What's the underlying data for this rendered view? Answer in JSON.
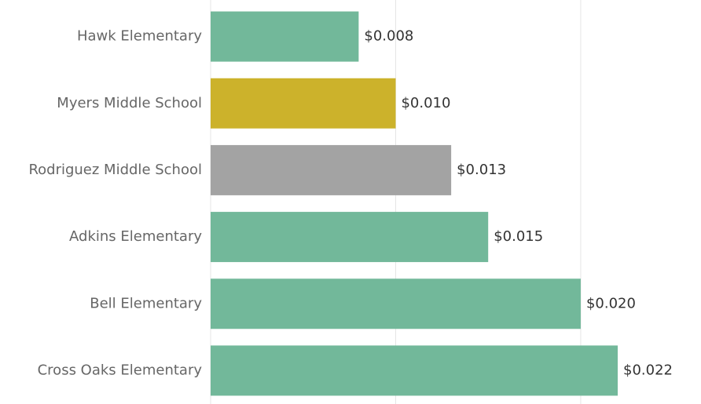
{
  "chart_data": {
    "type": "bar",
    "orientation": "horizontal",
    "categories": [
      "Hawk Elementary",
      "Myers Middle School",
      "Rodriguez Middle School",
      "Adkins Elementary",
      "Bell Elementary",
      "Cross Oaks Elementary"
    ],
    "values": [
      0.008,
      0.01,
      0.013,
      0.015,
      0.02,
      0.022
    ],
    "value_labels": [
      "$0.008",
      "$0.010",
      "$0.013",
      "$0.015",
      "$0.020",
      "$0.022"
    ],
    "colors": [
      "#72b89a",
      "#ccb22b",
      "#a3a3a3",
      "#72b89a",
      "#72b89a",
      "#72b89a"
    ],
    "xlim": [
      0,
      0.0265
    ],
    "xticks": [
      0,
      0.01,
      0.02
    ],
    "grid": true
  }
}
